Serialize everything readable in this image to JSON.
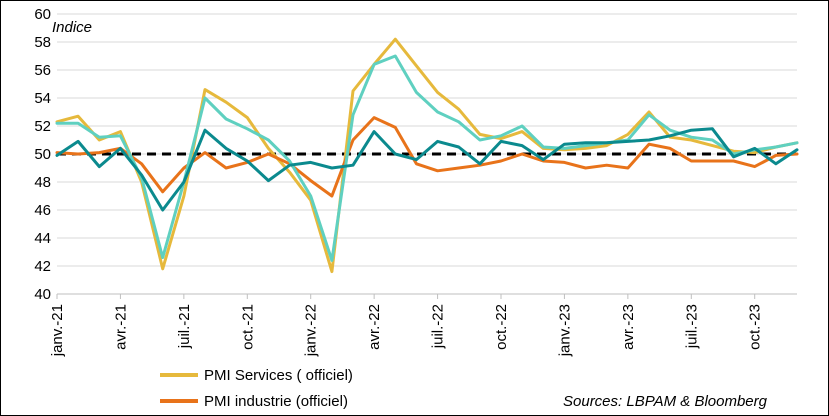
{
  "chart_data": {
    "type": "line",
    "unit_label": "Indice",
    "source": "Sources: LBPAM & Bloomberg",
    "ylim": [
      40,
      60
    ],
    "y_ticks": [
      40,
      42,
      44,
      46,
      48,
      50,
      52,
      54,
      56,
      58,
      60
    ],
    "x": [
      "janv.-21",
      "févr.-21",
      "mars-21",
      "avr.-21",
      "mai-21",
      "juin-21",
      "juil.-21",
      "août-21",
      "sept.-21",
      "oct.-21",
      "nov.-21",
      "déc.-21",
      "janv.-22",
      "févr.-22",
      "mars-22",
      "avr.-22",
      "mai-22",
      "juin-22",
      "juil.-22",
      "août-22",
      "sept.-22",
      "oct.-22",
      "nov.-22",
      "déc.-22",
      "janv.-23",
      "févr.-23",
      "mars-23",
      "avr.-23",
      "mai-23",
      "juin-23",
      "juil.-23",
      "août-23",
      "sept.-23",
      "oct.-23",
      "nov.-23",
      "déc.-23"
    ],
    "x_tick_labels": [
      {
        "index": 0,
        "label": "janv.-21"
      },
      {
        "index": 3,
        "label": "avr.-21"
      },
      {
        "index": 6,
        "label": "juil.-21"
      },
      {
        "index": 9,
        "label": "oct.-21"
      },
      {
        "index": 12,
        "label": "janv.-22"
      },
      {
        "index": 15,
        "label": "avr.-22"
      },
      {
        "index": 18,
        "label": "juil.-22"
      },
      {
        "index": 21,
        "label": "oct.-22"
      },
      {
        "index": 24,
        "label": "janv.-23"
      },
      {
        "index": 27,
        "label": "avr.-23"
      },
      {
        "index": 30,
        "label": "juil.-23"
      },
      {
        "index": 33,
        "label": "oct.-23"
      }
    ],
    "reference_line": {
      "y": 50,
      "style": "dashed",
      "color": "#000000"
    },
    "grid": {
      "horizontal": true,
      "color": "#d9d9d9"
    },
    "series": [
      {
        "name": "PMI Services ( officiel)",
        "color": "#E6B93C",
        "show_in_legend": true,
        "values": [
          52.3,
          52.7,
          51.0,
          51.6,
          48.0,
          41.8,
          47.0,
          54.6,
          53.7,
          52.6,
          50.4,
          48.7,
          46.7,
          41.6,
          54.5,
          56.4,
          58.2,
          56.3,
          54.4,
          53.2,
          51.4,
          51.1,
          51.6,
          50.4,
          50.3,
          50.4,
          50.6,
          51.4,
          53.0,
          51.2,
          51.0,
          50.6,
          50.2,
          50.1,
          50.5,
          50.8
        ]
      },
      {
        "name": "PMI industrie (officiel)",
        "color": "#E8731A",
        "show_in_legend": true,
        "values": [
          50.1,
          50.0,
          50.1,
          50.4,
          49.3,
          47.3,
          49.0,
          50.1,
          49.0,
          49.4,
          50.0,
          49.3,
          48.1,
          47.0,
          51.0,
          52.6,
          51.9,
          49.3,
          48.8,
          49.0,
          49.2,
          49.5,
          50.0,
          49.5,
          49.4,
          49.0,
          49.2,
          49.0,
          50.7,
          50.4,
          49.5,
          49.5,
          49.5,
          49.1,
          49.9,
          50.0
        ]
      },
      {
        "name": "",
        "color": "#5FD0C0",
        "show_in_legend": false,
        "values": [
          52.2,
          52.2,
          51.2,
          51.3,
          48.3,
          42.6,
          48.0,
          54.0,
          52.5,
          51.8,
          51.0,
          49.5,
          47.0,
          42.4,
          52.8,
          56.4,
          57.0,
          54.4,
          53.0,
          52.3,
          51.0,
          51.3,
          52.0,
          50.5,
          50.4,
          50.6,
          50.8,
          51.0,
          52.8,
          51.7,
          51.2,
          51.0,
          50.0,
          50.3,
          50.5,
          50.8
        ]
      },
      {
        "name": "",
        "color": "#0B8A8E",
        "show_in_legend": false,
        "values": [
          49.9,
          50.9,
          49.1,
          50.4,
          48.5,
          46.0,
          48.0,
          51.7,
          50.4,
          49.5,
          48.1,
          49.2,
          49.4,
          49.0,
          49.2,
          51.6,
          50.0,
          49.6,
          50.9,
          50.5,
          49.3,
          50.9,
          50.6,
          49.6,
          50.7,
          50.8,
          50.8,
          50.9,
          51.0,
          51.3,
          51.7,
          51.8,
          49.8,
          50.4,
          49.3,
          50.3
        ]
      }
    ]
  }
}
